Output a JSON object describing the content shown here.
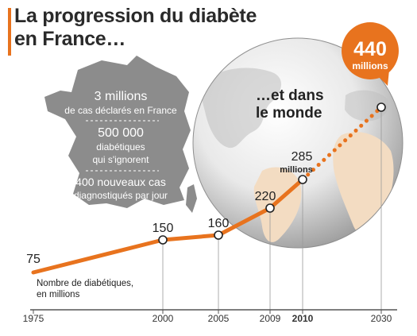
{
  "title": "La progression du diabète en France…",
  "world_caption_line1": "…et dans",
  "world_caption_line2": "le monde",
  "france_facts": {
    "fact1_value": "3 millions",
    "fact1_text": "de cas déclarés en France",
    "fact2_value": "500 000",
    "fact2_text_line1": "diabétiques",
    "fact2_text_line2": "qui s'ignorent",
    "fact3_value": "400 nouveaux cas",
    "fact3_text": "diagnostiqués par jour"
  },
  "colors": {
    "accent": "#e8731e",
    "map_grey": "#8c8c8c",
    "globe_land": "#f3dcc2",
    "axis": "#555555"
  },
  "chart_data": {
    "type": "line",
    "ylabel_line1": "Nombre de diabétiques,",
    "ylabel_line2": "en millions",
    "x": [
      1975,
      2000,
      2005,
      2009,
      2010,
      2030
    ],
    "x_tick_labels": [
      "1975",
      "2000",
      "2005",
      "2009",
      "2010",
      "2030"
    ],
    "bold_ticks": [
      "2010"
    ],
    "series": [
      {
        "values": [
          75,
          150,
          160,
          220,
          285,
          440
        ],
        "value_labels": [
          "75",
          "150",
          "160",
          "220",
          "285",
          "440"
        ],
        "unit_labels": [
          "",
          "",
          "",
          "",
          "millions",
          "millions"
        ],
        "projected_from": 2010
      }
    ]
  }
}
